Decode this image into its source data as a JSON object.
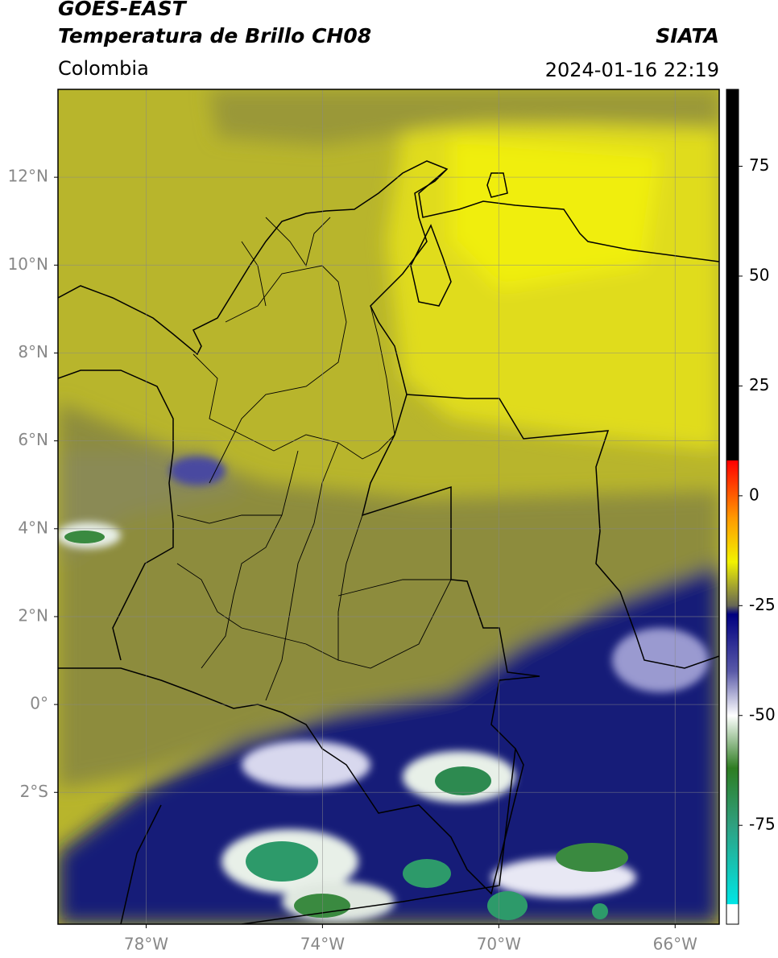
{
  "header": {
    "title_line1": "GOES-EAST",
    "title_line2": "Temperatura de Brillo CH08",
    "subtitle": "Colombia",
    "source": "SIATA",
    "datetime": "2024-01-16 22:19"
  },
  "map": {
    "lon_range": [
      -80,
      -65
    ],
    "lat_range": [
      -5,
      14
    ],
    "grid": true,
    "lon_ticks": [
      {
        "value": -78,
        "label": "78°W"
      },
      {
        "value": -74,
        "label": "74°W"
      },
      {
        "value": -70,
        "label": "70°W"
      },
      {
        "value": -66,
        "label": "66°W"
      }
    ],
    "lat_ticks": [
      {
        "value": 12,
        "label": "12°N"
      },
      {
        "value": 10,
        "label": "10°N"
      },
      {
        "value": 8,
        "label": "8°N"
      },
      {
        "value": 6,
        "label": "6°N"
      },
      {
        "value": 4,
        "label": "4°N"
      },
      {
        "value": 2,
        "label": "2°N"
      },
      {
        "value": 0,
        "label": "0°"
      },
      {
        "value": -2,
        "label": "2°S"
      }
    ]
  },
  "colorbar": {
    "range": [
      -97.5,
      92.5
    ],
    "ticks": [
      75,
      50,
      25,
      0,
      -25,
      -50,
      -75
    ],
    "colormap": [
      {
        "value": -97.5,
        "color": "#ffffff"
      },
      {
        "value": -93,
        "color": "#ffffff"
      },
      {
        "value": -92.9,
        "color": "#00e5e5"
      },
      {
        "value": -75,
        "color": "#2fa080"
      },
      {
        "value": -62,
        "color": "#2e7d22"
      },
      {
        "value": -50,
        "color": "#ffffff"
      },
      {
        "value": -40,
        "color": "#5a5aa8"
      },
      {
        "value": -27,
        "color": "#000080"
      },
      {
        "value": -25,
        "color": "#666655"
      },
      {
        "value": -15,
        "color": "#f2f200"
      },
      {
        "value": -5,
        "color": "#ff9900"
      },
      {
        "value": 8,
        "color": "#ff0000"
      },
      {
        "value": 8.1,
        "color": "#000000"
      },
      {
        "value": 92.5,
        "color": "#000000"
      }
    ]
  }
}
